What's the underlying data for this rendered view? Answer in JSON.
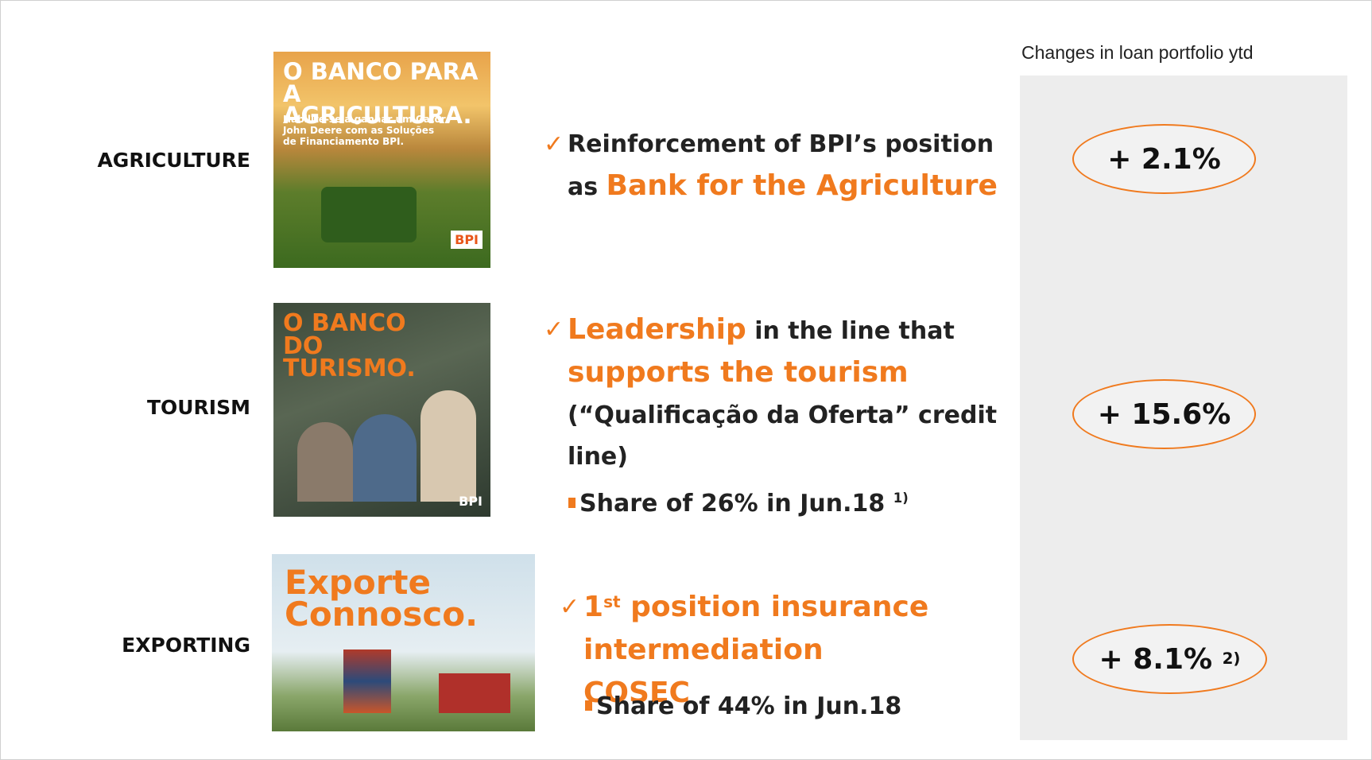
{
  "header": "Changes in loan portfolio ytd",
  "rows": [
    {
      "label": "Agriculture",
      "ad": {
        "headline": "O BANCO PARA A AGRICULTURA.",
        "text": "Habilite-se a ganhar um Gator John Deere com as Soluções de Financiamento BPI.",
        "brand": "BPI"
      },
      "bullet": [
        {
          "text": "Reinforcement of BPI’s position as ",
          "highlight": false
        },
        {
          "text": "Bank for the Agriculture",
          "highlight": true
        }
      ],
      "change": "+ 2.1%"
    },
    {
      "label": "Tourism",
      "ad": {
        "headline": "O BANCO DO TURISMO.",
        "brand": "BPI"
      },
      "bullet": [
        {
          "text": "Leadership",
          "highlight": true
        },
        {
          "text": " in the line that ",
          "highlight": false
        },
        {
          "text": "supports the tourism",
          "highlight": true
        },
        {
          "text": " (“Qualificação da Oferta” credit line)",
          "highlight": false
        }
      ],
      "sub": "Share of 26% in Jun.18",
      "sub_note": "1)",
      "change": "+ 15.6%"
    },
    {
      "label": "Exporting",
      "ad": {
        "headline": "Exporte Connosco."
      },
      "bullet_lead": "1",
      "bullet_sup": "st",
      "bullet": [
        {
          "text": " position insurance intermediation COSEC",
          "highlight": true
        }
      ],
      "sub": "Share of 44% in Jun.18",
      "change": "+ 8.1%",
      "change_note": "2)"
    }
  ]
}
